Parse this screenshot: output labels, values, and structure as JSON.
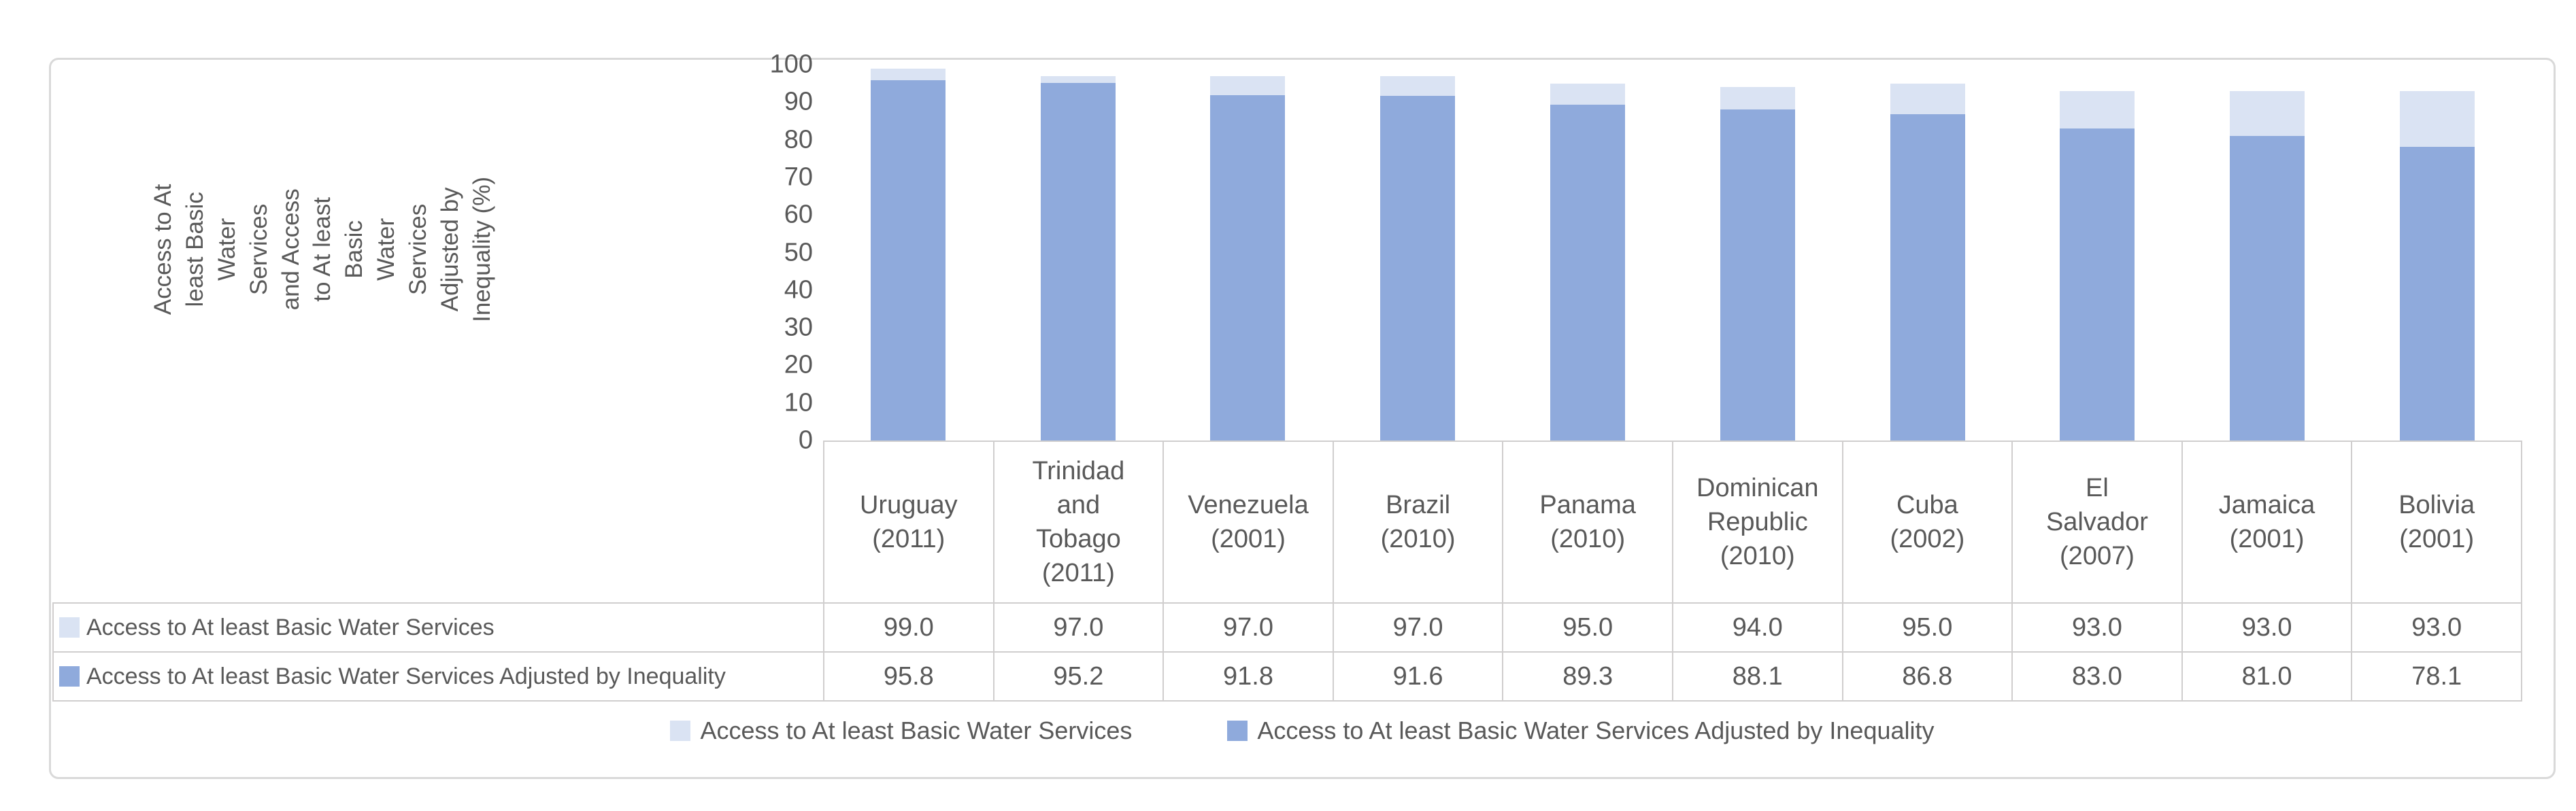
{
  "chart_data": {
    "type": "bar",
    "title": "",
    "categories": [
      "Uruguay (2011)",
      "Trinidad and Tobago (2011)",
      "Venezuela (2001)",
      "Brazil (2010)",
      "Panama (2010)",
      "Dominican Republic (2010)",
      "Cuba (2002)",
      "El Salvador (2007)",
      "Jamaica (2001)",
      "Bolivia (2001)"
    ],
    "series": [
      {
        "name": "Access to At least Basic Water Services",
        "color": "#dae3f3",
        "values": [
          99.0,
          97.0,
          97.0,
          97.0,
          95.0,
          94.0,
          95.0,
          93.0,
          93.0,
          93.0
        ]
      },
      {
        "name": "Access to At least Basic Water Services Adjusted by Inequality",
        "color": "#8faadc",
        "values": [
          95.8,
          95.2,
          91.8,
          91.6,
          89.3,
          88.1,
          86.8,
          83.0,
          81.0,
          78.1
        ]
      }
    ],
    "xlabel": "",
    "ylabel": "Access to At least Basic Water Services\nand Access to At least Basic\nWater Services\nAdjusted by Inequality (%)",
    "ylim": [
      0,
      100
    ],
    "yticks": [
      0,
      10,
      20,
      30,
      40,
      50,
      60,
      70,
      80,
      90,
      100
    ],
    "grid": false,
    "legend_position": "bottom",
    "bar_overlap": "full-overlap-light-behind"
  },
  "table": {
    "header_labels": [
      "Uruguay\n(2011)",
      "Trinidad\nand\nTobago\n(2011)",
      "Venezuela\n(2001)",
      "Brazil\n(2010)",
      "Panama\n(2010)",
      "Dominican\nRepublic\n(2010)",
      "Cuba\n(2002)",
      "El\nSalvador\n(2007)",
      "Jamaica\n(2001)",
      "Bolivia\n(2001)"
    ],
    "rows": [
      {
        "label": "Access to At least Basic Water Services",
        "swatch_color": "#dae3f3",
        "values": [
          "99.0",
          "97.0",
          "97.0",
          "97.0",
          "95.0",
          "94.0",
          "95.0",
          "93.0",
          "93.0",
          "93.0"
        ]
      },
      {
        "label": "Access to At least Basic Water Services Adjusted by Inequality",
        "swatch_color": "#8faadc",
        "values": [
          "95.8",
          "95.2",
          "91.8",
          "91.6",
          "89.3",
          "88.1",
          "86.8",
          "83.0",
          "81.0",
          "78.1"
        ]
      }
    ]
  },
  "legend": {
    "items": [
      {
        "label": "Access to At least Basic Water Services",
        "color": "#dae3f3"
      },
      {
        "label": "Access to At least Basic Water Services Adjusted by Inequality",
        "color": "#8faadc"
      }
    ]
  },
  "colors": {
    "bar_light": "#dae3f3",
    "bar_medium": "#8faadc",
    "table_border": "#d0cece",
    "frame_border": "#d9d9d9",
    "text": "#595959",
    "background": "#ffffff"
  }
}
